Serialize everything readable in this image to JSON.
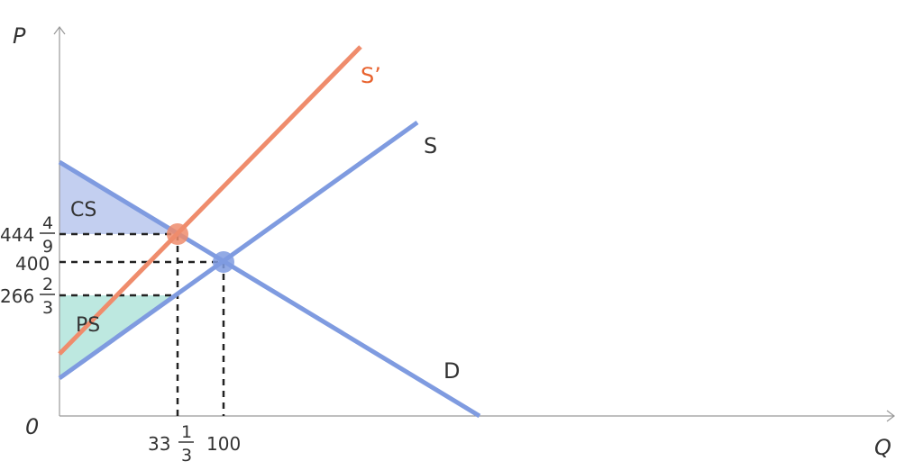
{
  "axes": {
    "y_label": "P",
    "x_label": "Q",
    "origin_label": "0"
  },
  "curves": {
    "supply_label": "S",
    "supply_shifted_label": "S’",
    "demand_label": "D"
  },
  "areas": {
    "consumer_surplus_label": "CS",
    "producer_surplus_label": "PS"
  },
  "price_ticks": {
    "p_high_whole": "444",
    "p_high_num": "4",
    "p_high_den": "9",
    "p_eq": "400",
    "p_low_whole": "266",
    "p_low_num": "2",
    "p_low_den": "3"
  },
  "quantity_ticks": {
    "q_new_whole": "33",
    "q_new_num": "1",
    "q_new_den": "3",
    "q_eq": "100"
  },
  "colors": {
    "supply_demand": "#7f9be0",
    "supply_shifted": "#ef8c6c",
    "supply_shifted_label": "#e8622e",
    "consumer_surplus_fill": "#c3cff0",
    "producer_surplus_fill": "#bde8e0",
    "axis": "#999999",
    "dashed": "#222222"
  }
}
